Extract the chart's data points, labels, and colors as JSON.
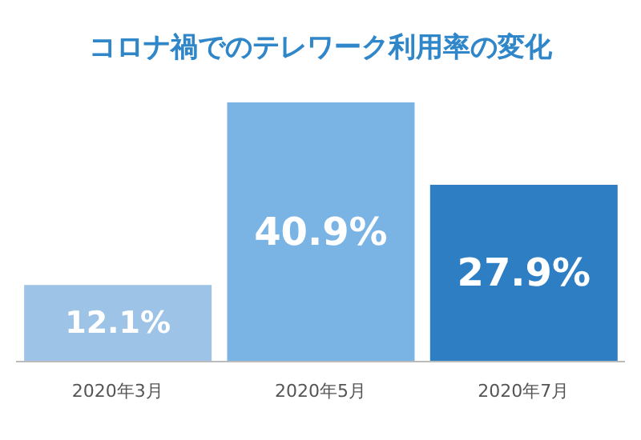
{
  "chart_data": {
    "type": "bar",
    "title": "コロナ禍でのテレワーク利用率の変化",
    "categories": [
      "2020年3月",
      "2020年5月",
      "2020年7月"
    ],
    "values": [
      12.1,
      40.9,
      27.9
    ],
    "value_labels": [
      "12.1%",
      "40.9%",
      "27.9%"
    ],
    "colors": [
      "#9dc3e6",
      "#7ab4e4",
      "#2e7ec4"
    ],
    "grid": false
  }
}
